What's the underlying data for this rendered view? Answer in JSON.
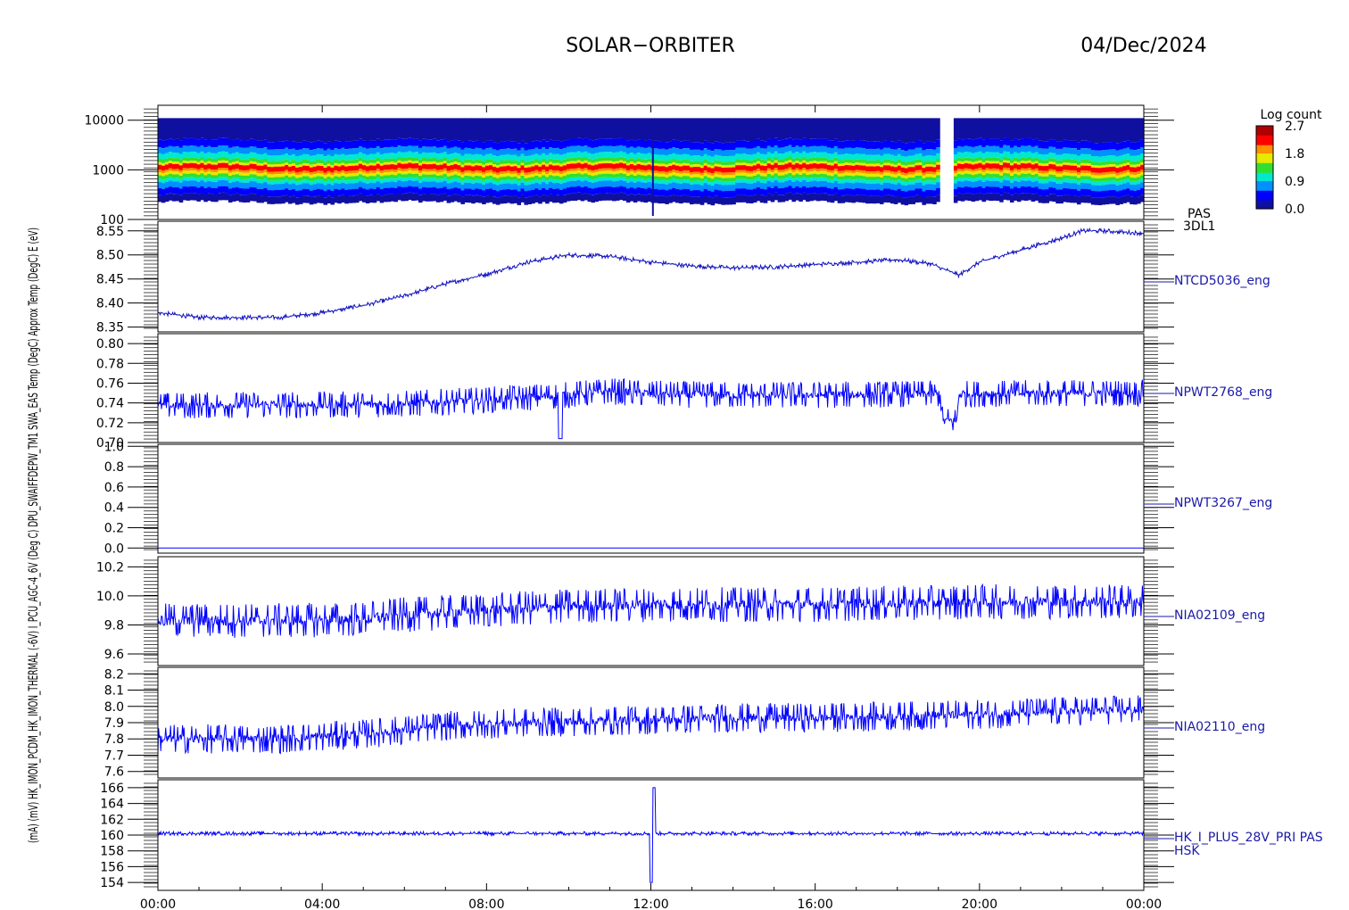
{
  "header": {
    "mission": "SOLAR−ORBITER",
    "date": "04/Dec/2024"
  },
  "colorbar": {
    "title": "Log count",
    "ticks": [
      "2.7",
      "1.8",
      "0.9",
      "0.0"
    ],
    "range": [
      0.0,
      2.7
    ]
  },
  "y_axis_overlap": "(mA)  (mV)  HK_IMON_PCDM_HK_IMON_THERMAL  (-6V)  I_PCU_AGC-4_6V (Deg  C)  DPU_SWAIFFDEPW_TM1  SWA_EAS Temp (DegC)  Approx Temp (DegC)  E (eV)",
  "x_axis": {
    "ticks": [
      "00:00",
      "04:00",
      "08:00",
      "12:00",
      "16:00",
      "20:00",
      "00:00"
    ],
    "range_hours": [
      0,
      24
    ]
  },
  "chart_data": [
    {
      "type": "heatmap",
      "name": "PAS 3DL1",
      "label_lines": [
        "PAS",
        "3DL1"
      ],
      "ylabel": "E (eV)",
      "yscale": "log",
      "ylim": [
        100,
        20000
      ],
      "y_ticks": [
        "10000",
        "1000",
        "100"
      ],
      "peak_energy_eV": 1100,
      "data_gaps_hours": [
        [
          19.05,
          19.35
        ]
      ],
      "spike_hours": 12.05,
      "colormap": [
        "#ffffff",
        "#1010a0",
        "#0000ff",
        "#0090ff",
        "#00e8d0",
        "#30e030",
        "#e8e800",
        "#ff9000",
        "#ff0000",
        "#b00000"
      ]
    },
    {
      "type": "line",
      "name": "NTCD5036_eng",
      "ylabel": "Approx Temp (DegC)",
      "ylim": [
        8.34,
        8.57
      ],
      "y_ticks": [
        "8.55",
        "8.50",
        "8.45",
        "8.40",
        "8.35"
      ],
      "keypoints": [
        [
          0,
          8.38
        ],
        [
          1,
          8.37
        ],
        [
          2,
          8.37
        ],
        [
          3,
          8.37
        ],
        [
          4,
          8.38
        ],
        [
          5,
          8.395
        ],
        [
          6,
          8.415
        ],
        [
          7,
          8.44
        ],
        [
          8,
          8.46
        ],
        [
          9,
          8.485
        ],
        [
          10,
          8.5
        ],
        [
          11,
          8.497
        ],
        [
          12,
          8.485
        ],
        [
          13,
          8.477
        ],
        [
          14,
          8.473
        ],
        [
          15,
          8.475
        ],
        [
          16,
          8.48
        ],
        [
          17,
          8.485
        ],
        [
          18,
          8.49
        ],
        [
          18.8,
          8.482
        ],
        [
          19.5,
          8.458
        ],
        [
          20,
          8.485
        ],
        [
          21,
          8.51
        ],
        [
          22,
          8.535
        ],
        [
          22.5,
          8.55
        ],
        [
          23,
          8.55
        ],
        [
          24,
          8.545
        ]
      ],
      "noise_amplitude": 0.003,
      "color": "#1010c0"
    },
    {
      "type": "line",
      "name": "NPWT2768_eng",
      "ylabel": "SWA_EAS Temp (DegC)",
      "ylim": [
        0.7,
        0.81
      ],
      "y_ticks": [
        "0.80",
        "0.78",
        "0.76",
        "0.74",
        "0.72",
        "0.70"
      ],
      "keypoints": [
        [
          0,
          0.737
        ],
        [
          2,
          0.738
        ],
        [
          4,
          0.738
        ],
        [
          6,
          0.739
        ],
        [
          8,
          0.743
        ],
        [
          10,
          0.748
        ],
        [
          11,
          0.752
        ],
        [
          12,
          0.749
        ],
        [
          14,
          0.748
        ],
        [
          16,
          0.748
        ],
        [
          18,
          0.749
        ],
        [
          19.05,
          0.749
        ],
        [
          19.1,
          0.722
        ],
        [
          19.45,
          0.722
        ],
        [
          19.5,
          0.749
        ],
        [
          22,
          0.75
        ],
        [
          24,
          0.75
        ]
      ],
      "noise_amplitude": 0.009,
      "dip_hours": 9.8,
      "color": "#0000ff"
    },
    {
      "type": "line",
      "name": "NPWT3267_eng",
      "ylabel": "DPU_SWAIFFDEPW_TM1",
      "ylim": [
        -0.05,
        1.02
      ],
      "y_ticks": [
        "1.0",
        "0.8",
        "0.6",
        "0.4",
        "0.2",
        "0.0"
      ],
      "keypoints": [
        [
          0,
          0.0
        ],
        [
          24,
          0.0
        ]
      ],
      "noise_amplitude": 0.0,
      "color": "#0000ff"
    },
    {
      "type": "line",
      "name": "NIA02109_eng",
      "ylabel": "I_PCU_AGC-4_6V (-6V)",
      "ylim": [
        9.52,
        10.27
      ],
      "y_ticks": [
        "10.2",
        "10.0",
        "9.8",
        "9.6"
      ],
      "keypoints": [
        [
          0,
          9.83
        ],
        [
          3,
          9.83
        ],
        [
          5,
          9.84
        ],
        [
          6,
          9.87
        ],
        [
          8,
          9.9
        ],
        [
          10,
          9.93
        ],
        [
          12,
          9.94
        ],
        [
          14,
          9.94
        ],
        [
          16,
          9.94
        ],
        [
          18,
          9.95
        ],
        [
          20,
          9.96
        ],
        [
          24,
          9.96
        ]
      ],
      "noise_amplitude": 0.08,
      "color": "#0000ff"
    },
    {
      "type": "line",
      "name": "NIA02110_eng",
      "ylabel": "HK_IMON_THERMAL (mV)",
      "ylim": [
        7.56,
        8.24
      ],
      "y_ticks": [
        "8.2",
        "8.1",
        "8.0",
        "7.9",
        "7.8",
        "7.7",
        "7.6"
      ],
      "keypoints": [
        [
          0,
          7.8
        ],
        [
          3,
          7.8
        ],
        [
          5,
          7.83
        ],
        [
          7,
          7.88
        ],
        [
          9,
          7.9
        ],
        [
          11,
          7.91
        ],
        [
          14,
          7.93
        ],
        [
          16,
          7.93
        ],
        [
          18,
          7.94
        ],
        [
          20,
          7.95
        ],
        [
          22,
          7.97
        ],
        [
          24,
          7.98
        ]
      ],
      "noise_amplitude": 0.06,
      "color": "#0000ff"
    },
    {
      "type": "line",
      "name": "HK_I_PLUS_28V_PRI PAS HSK",
      "label_lines": [
        "HK_I_PLUS_28V_PRI PAS",
        "HSK"
      ],
      "ylabel": "HK_IMON_PCDM (mA)",
      "ylim": [
        153,
        167
      ],
      "y_ticks": [
        "166",
        "164",
        "162",
        "160",
        "158",
        "156",
        "154"
      ],
      "keypoints": [
        [
          0,
          160.2
        ],
        [
          12.0,
          160.2
        ],
        [
          24,
          160.2
        ]
      ],
      "spike": {
        "hour": 12.05,
        "min": 154.0,
        "max": 166.0
      },
      "noise_amplitude": 0.15,
      "color": "#0000ff"
    }
  ]
}
